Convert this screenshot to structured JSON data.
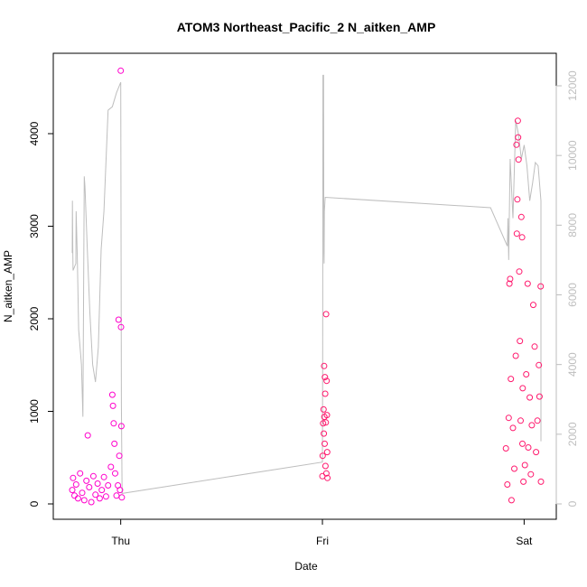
{
  "colors": {
    "points_a": "#ff00cc",
    "points_b": "#ff1a6e",
    "line": "#bebebe",
    "axis": "#000000",
    "axis_right": "#bebebe"
  },
  "chart_data": {
    "type": "scatter",
    "title": "ATOM3 Northeast_Pacific_2 N_aitken_AMP",
    "xlabel": "Date",
    "ylabel": "N_aitken_AMP",
    "x_axis": {
      "type": "date",
      "range": [
        "Wed 18:14",
        "Sat 02:00"
      ],
      "ticks": [
        "Thu",
        "Fri",
        "Sat"
      ]
    },
    "y_axis_left": {
      "range": [
        0,
        4700
      ],
      "ticks": [
        0,
        1000,
        2000,
        3000,
        4000
      ]
    },
    "y_axis_right": {
      "range": [
        0,
        12400
      ],
      "ticks": [
        0,
        2000,
        4000,
        6000,
        8000,
        10000,
        12000
      ],
      "color": "#bebebe"
    },
    "grid": false,
    "legend": "none",
    "series": [
      {
        "kind": "points",
        "axis": "left",
        "color": "#ff00cc",
        "points": [
          [
            "Wed 18:14",
            150
          ],
          [
            "Wed 18:20",
            280
          ],
          [
            "Wed 18:30",
            90
          ],
          [
            "Wed 18:42",
            210
          ],
          [
            "Wed 18:55",
            60
          ],
          [
            "Wed 19:10",
            330
          ],
          [
            "Wed 19:25",
            120
          ],
          [
            "Wed 19:40",
            40
          ],
          [
            "Wed 19:55",
            250
          ],
          [
            "Wed 20:05",
            740
          ],
          [
            "Wed 20:15",
            180
          ],
          [
            "Wed 20:30",
            20
          ],
          [
            "Wed 20:45",
            300
          ],
          [
            "Wed 21:00",
            100
          ],
          [
            "Wed 21:15",
            220
          ],
          [
            "Wed 21:30",
            60
          ],
          [
            "Wed 21:45",
            150
          ],
          [
            "Wed 22:00",
            290
          ],
          [
            "Wed 22:15",
            80
          ],
          [
            "Wed 22:30",
            200
          ],
          [
            "Wed 22:50",
            400
          ],
          [
            "Wed 23:00",
            1180
          ],
          [
            "Wed 23:05",
            1060
          ],
          [
            "Wed 23:10",
            870
          ],
          [
            "Wed 23:15",
            650
          ],
          [
            "Wed 23:20",
            330
          ],
          [
            "Wed 23:30",
            90
          ],
          [
            "Wed 23:40",
            200
          ],
          [
            "Wed 23:45",
            1990
          ],
          [
            "Wed 23:50",
            520
          ],
          [
            "Wed 23:55",
            150
          ],
          [
            "Thu 00:00",
            4680
          ],
          [
            "Thu 00:02",
            1910
          ],
          [
            "Thu 00:05",
            840
          ],
          [
            "Thu 00:08",
            70
          ]
        ]
      },
      {
        "kind": "points",
        "axis": "left",
        "color": "#ff1a6e",
        "points": [
          [
            "Fri 00:00",
            300
          ],
          [
            "Fri 00:02",
            520
          ],
          [
            "Fri 00:05",
            870
          ],
          [
            "Fri 00:08",
            1020
          ],
          [
            "Fri 00:10",
            760
          ],
          [
            "Fri 00:12",
            1490
          ],
          [
            "Fri 00:14",
            940
          ],
          [
            "Fri 00:16",
            650
          ],
          [
            "Fri 00:18",
            1370
          ],
          [
            "Fri 00:20",
            1190
          ],
          [
            "Fri 00:22",
            410
          ],
          [
            "Fri 00:24",
            880
          ],
          [
            "Fri 00:26",
            2050
          ],
          [
            "Fri 00:28",
            330
          ],
          [
            "Fri 00:30",
            1330
          ],
          [
            "Fri 00:32",
            960
          ],
          [
            "Fri 00:34",
            560
          ],
          [
            "Fri 00:36",
            280
          ],
          [
            "Fri 21:50",
            600
          ],
          [
            "Fri 22:00",
            210
          ],
          [
            "Fri 22:10",
            930
          ],
          [
            "Fri 22:15",
            2380
          ],
          [
            "Fri 22:20",
            2430
          ],
          [
            "Fri 22:25",
            1350
          ],
          [
            "Fri 22:30",
            40
          ],
          [
            "Fri 22:40",
            820
          ],
          [
            "Fri 22:50",
            380
          ],
          [
            "Fri 23:00",
            1600
          ],
          [
            "Fri 23:05",
            3880
          ],
          [
            "Fri 23:08",
            2920
          ],
          [
            "Fri 23:12",
            3290
          ],
          [
            "Fri 23:15",
            4140
          ],
          [
            "Fri 23:17",
            3960
          ],
          [
            "Fri 23:20",
            3720
          ],
          [
            "Fri 23:25",
            2510
          ],
          [
            "Fri 23:30",
            1760
          ],
          [
            "Fri 23:35",
            900
          ],
          [
            "Fri 23:40",
            3100
          ],
          [
            "Fri 23:45",
            2880
          ],
          [
            "Fri 23:48",
            650
          ],
          [
            "Fri 23:50",
            1250
          ],
          [
            "Fri 23:55",
            240
          ],
          [
            "Sat 00:05",
            420
          ],
          [
            "Sat 00:15",
            1400
          ],
          [
            "Sat 00:25",
            2380
          ],
          [
            "Sat 00:30",
            610
          ],
          [
            "Sat 00:40",
            1150
          ],
          [
            "Sat 00:48",
            320
          ],
          [
            "Sat 00:55",
            850
          ],
          [
            "Sat 01:05",
            2150
          ],
          [
            "Sat 01:15",
            1700
          ],
          [
            "Sat 01:25",
            560
          ],
          [
            "Sat 01:35",
            900
          ],
          [
            "Sat 01:45",
            1500
          ],
          [
            "Sat 01:50",
            1160
          ],
          [
            "Sat 01:58",
            2350
          ],
          [
            "Sat 02:00",
            240
          ]
        ]
      },
      {
        "kind": "line",
        "axis": "right",
        "color": "#bebebe",
        "points": [
          [
            "Wed 18:14",
            7200
          ],
          [
            "Wed 18:15",
            8700
          ],
          [
            "Wed 18:18",
            7300
          ],
          [
            "Wed 18:20",
            6700
          ],
          [
            "Wed 18:40",
            6900
          ],
          [
            "Wed 18:42",
            8400
          ],
          [
            "Wed 18:50",
            7100
          ],
          [
            "Wed 19:00",
            5000
          ],
          [
            "Wed 19:20",
            4000
          ],
          [
            "Wed 19:30",
            2500
          ],
          [
            "Wed 19:40",
            9400
          ],
          [
            "Wed 19:45",
            9100
          ],
          [
            "Wed 20:00",
            7500
          ],
          [
            "Wed 20:20",
            5500
          ],
          [
            "Wed 20:40",
            4000
          ],
          [
            "Wed 21:00",
            3500
          ],
          [
            "Wed 21:20",
            4500
          ],
          [
            "Wed 21:40",
            7300
          ],
          [
            "Wed 22:00",
            8400
          ],
          [
            "Wed 22:30",
            11300
          ],
          [
            "Wed 23:00",
            11400
          ],
          [
            "Wed 23:30",
            11800
          ],
          [
            "Thu 00:00",
            12100
          ],
          [
            "Thu 00:05",
            2900
          ],
          [
            "Thu 00:10",
            300
          ],
          [
            "Fri 00:00",
            1200
          ],
          [
            "Fri 00:02",
            4000
          ],
          [
            "Fri 00:04",
            12300
          ],
          [
            "Fri 00:08",
            12300
          ],
          [
            "Fri 00:10",
            7200
          ],
          [
            "Fri 00:12",
            6900
          ],
          [
            "Fri 00:14",
            8400
          ],
          [
            "Fri 00:20",
            8800
          ],
          [
            "Fri 20:00",
            8500
          ],
          [
            "Fri 22:00",
            7400
          ],
          [
            "Fri 22:05",
            8200
          ],
          [
            "Fri 22:10",
            7000
          ],
          [
            "Fri 22:20",
            9900
          ],
          [
            "Fri 22:40",
            8200
          ],
          [
            "Fri 23:00",
            11000
          ],
          [
            "Fri 23:20",
            10600
          ],
          [
            "Fri 23:40",
            9900
          ],
          [
            "Sat 00:00",
            10300
          ],
          [
            "Sat 00:20",
            9700
          ],
          [
            "Sat 00:40",
            8700
          ],
          [
            "Sat 01:00",
            9200
          ],
          [
            "Sat 01:20",
            9800
          ],
          [
            "Sat 01:40",
            9700
          ],
          [
            "Sat 02:00",
            8700
          ],
          [
            "Sat 02:00",
            1800
          ]
        ]
      }
    ]
  }
}
